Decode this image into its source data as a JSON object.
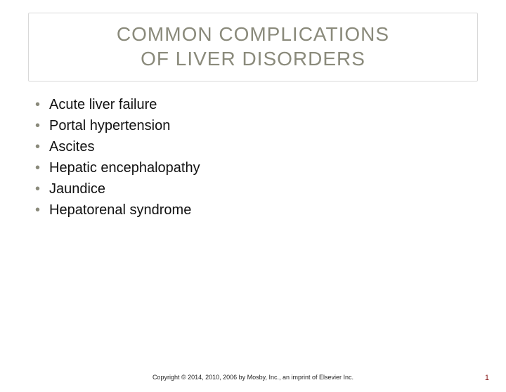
{
  "title": {
    "line1": "COMMON COMPLICATIONS",
    "line2": "OF LIVER DISORDERS",
    "color": "#8a8a7b",
    "fontsize": 28,
    "border_color": "#d9d9d9"
  },
  "bullets": {
    "bullet_color": "#8a8a7b",
    "text_color": "#111111",
    "fontsize": 20,
    "items": [
      {
        "text": "Acute liver failure"
      },
      {
        "text": "Portal hypertension"
      },
      {
        "text": "Ascites"
      },
      {
        "text": "Hepatic encephalopathy"
      },
      {
        "text": "Jaundice"
      },
      {
        "text": "Hepatorenal syndrome"
      }
    ]
  },
  "footer": {
    "copyright": "Copyright © 2014, 2010, 2006 by Mosby, Inc., an imprint of Elsevier Inc.",
    "fontsize": 9
  },
  "page_number": {
    "value": "1",
    "color": "#8a1a1a"
  },
  "background_color": "#ffffff"
}
